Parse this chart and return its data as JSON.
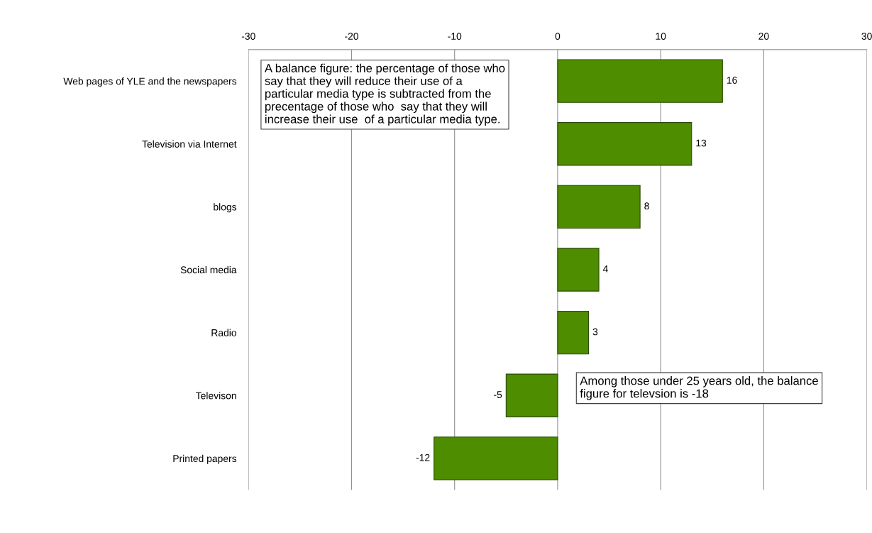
{
  "chart_data": {
    "type": "bar",
    "orientation": "horizontal",
    "categories": [
      "Web pages of YLE and the newspapers",
      "Television via Internet",
      "blogs",
      "Social media",
      "Radio",
      "Televison",
      "Printed papers"
    ],
    "values": [
      16,
      13,
      8,
      4,
      3,
      -5,
      -12
    ],
    "color": "#4e8c00",
    "xlim": [
      -30,
      30
    ],
    "xticks": [
      -30,
      -20,
      -10,
      0,
      10,
      20,
      30
    ],
    "grid": "x",
    "data_labels": true,
    "annotations": [
      "A balance figure: the percentage of those who say that they will reduce their use of a particular media type is subtracted from the precentage of those who  say that they will increase their use  of a particular media type.",
      "Among those under 25 years old, the balance figure for televsion is -18"
    ]
  }
}
